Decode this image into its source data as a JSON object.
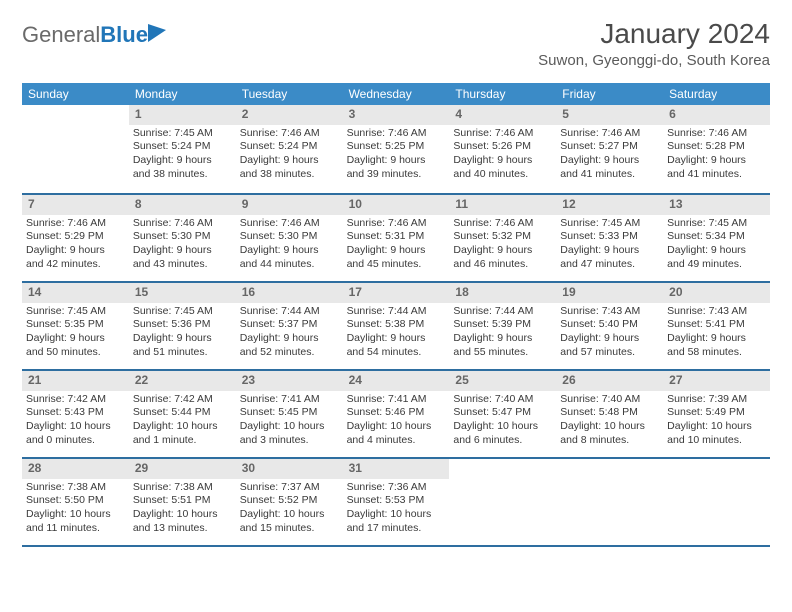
{
  "brand": {
    "part1": "General",
    "part2": "Blue"
  },
  "title": "January 2024",
  "location": "Suwon, Gyeonggi-do, South Korea",
  "colors": {
    "header_bg": "#3b8bc7",
    "header_text": "#ffffff",
    "daynum_bg": "#e8e8e8",
    "daynum_text": "#666666",
    "row_border": "#2e6ea0",
    "cell_border": "#b9d3e6",
    "brand_blue": "#2176b8",
    "brand_gray": "#6a6a6a",
    "body_text": "#3a3a3a"
  },
  "weekdays": [
    "Sunday",
    "Monday",
    "Tuesday",
    "Wednesday",
    "Thursday",
    "Friday",
    "Saturday"
  ],
  "weeks": [
    [
      {
        "blank": true
      },
      {
        "day": "1",
        "sunrise": "Sunrise: 7:45 AM",
        "sunset": "Sunset: 5:24 PM",
        "day1": "Daylight: 9 hours",
        "day2": "and 38 minutes."
      },
      {
        "day": "2",
        "sunrise": "Sunrise: 7:46 AM",
        "sunset": "Sunset: 5:24 PM",
        "day1": "Daylight: 9 hours",
        "day2": "and 38 minutes."
      },
      {
        "day": "3",
        "sunrise": "Sunrise: 7:46 AM",
        "sunset": "Sunset: 5:25 PM",
        "day1": "Daylight: 9 hours",
        "day2": "and 39 minutes."
      },
      {
        "day": "4",
        "sunrise": "Sunrise: 7:46 AM",
        "sunset": "Sunset: 5:26 PM",
        "day1": "Daylight: 9 hours",
        "day2": "and 40 minutes."
      },
      {
        "day": "5",
        "sunrise": "Sunrise: 7:46 AM",
        "sunset": "Sunset: 5:27 PM",
        "day1": "Daylight: 9 hours",
        "day2": "and 41 minutes."
      },
      {
        "day": "6",
        "sunrise": "Sunrise: 7:46 AM",
        "sunset": "Sunset: 5:28 PM",
        "day1": "Daylight: 9 hours",
        "day2": "and 41 minutes."
      }
    ],
    [
      {
        "day": "7",
        "sunrise": "Sunrise: 7:46 AM",
        "sunset": "Sunset: 5:29 PM",
        "day1": "Daylight: 9 hours",
        "day2": "and 42 minutes."
      },
      {
        "day": "8",
        "sunrise": "Sunrise: 7:46 AM",
        "sunset": "Sunset: 5:30 PM",
        "day1": "Daylight: 9 hours",
        "day2": "and 43 minutes."
      },
      {
        "day": "9",
        "sunrise": "Sunrise: 7:46 AM",
        "sunset": "Sunset: 5:30 PM",
        "day1": "Daylight: 9 hours",
        "day2": "and 44 minutes."
      },
      {
        "day": "10",
        "sunrise": "Sunrise: 7:46 AM",
        "sunset": "Sunset: 5:31 PM",
        "day1": "Daylight: 9 hours",
        "day2": "and 45 minutes."
      },
      {
        "day": "11",
        "sunrise": "Sunrise: 7:46 AM",
        "sunset": "Sunset: 5:32 PM",
        "day1": "Daylight: 9 hours",
        "day2": "and 46 minutes."
      },
      {
        "day": "12",
        "sunrise": "Sunrise: 7:45 AM",
        "sunset": "Sunset: 5:33 PM",
        "day1": "Daylight: 9 hours",
        "day2": "and 47 minutes."
      },
      {
        "day": "13",
        "sunrise": "Sunrise: 7:45 AM",
        "sunset": "Sunset: 5:34 PM",
        "day1": "Daylight: 9 hours",
        "day2": "and 49 minutes."
      }
    ],
    [
      {
        "day": "14",
        "sunrise": "Sunrise: 7:45 AM",
        "sunset": "Sunset: 5:35 PM",
        "day1": "Daylight: 9 hours",
        "day2": "and 50 minutes."
      },
      {
        "day": "15",
        "sunrise": "Sunrise: 7:45 AM",
        "sunset": "Sunset: 5:36 PM",
        "day1": "Daylight: 9 hours",
        "day2": "and 51 minutes."
      },
      {
        "day": "16",
        "sunrise": "Sunrise: 7:44 AM",
        "sunset": "Sunset: 5:37 PM",
        "day1": "Daylight: 9 hours",
        "day2": "and 52 minutes."
      },
      {
        "day": "17",
        "sunrise": "Sunrise: 7:44 AM",
        "sunset": "Sunset: 5:38 PM",
        "day1": "Daylight: 9 hours",
        "day2": "and 54 minutes."
      },
      {
        "day": "18",
        "sunrise": "Sunrise: 7:44 AM",
        "sunset": "Sunset: 5:39 PM",
        "day1": "Daylight: 9 hours",
        "day2": "and 55 minutes."
      },
      {
        "day": "19",
        "sunrise": "Sunrise: 7:43 AM",
        "sunset": "Sunset: 5:40 PM",
        "day1": "Daylight: 9 hours",
        "day2": "and 57 minutes."
      },
      {
        "day": "20",
        "sunrise": "Sunrise: 7:43 AM",
        "sunset": "Sunset: 5:41 PM",
        "day1": "Daylight: 9 hours",
        "day2": "and 58 minutes."
      }
    ],
    [
      {
        "day": "21",
        "sunrise": "Sunrise: 7:42 AM",
        "sunset": "Sunset: 5:43 PM",
        "day1": "Daylight: 10 hours",
        "day2": "and 0 minutes."
      },
      {
        "day": "22",
        "sunrise": "Sunrise: 7:42 AM",
        "sunset": "Sunset: 5:44 PM",
        "day1": "Daylight: 10 hours",
        "day2": "and 1 minute."
      },
      {
        "day": "23",
        "sunrise": "Sunrise: 7:41 AM",
        "sunset": "Sunset: 5:45 PM",
        "day1": "Daylight: 10 hours",
        "day2": "and 3 minutes."
      },
      {
        "day": "24",
        "sunrise": "Sunrise: 7:41 AM",
        "sunset": "Sunset: 5:46 PM",
        "day1": "Daylight: 10 hours",
        "day2": "and 4 minutes."
      },
      {
        "day": "25",
        "sunrise": "Sunrise: 7:40 AM",
        "sunset": "Sunset: 5:47 PM",
        "day1": "Daylight: 10 hours",
        "day2": "and 6 minutes."
      },
      {
        "day": "26",
        "sunrise": "Sunrise: 7:40 AM",
        "sunset": "Sunset: 5:48 PM",
        "day1": "Daylight: 10 hours",
        "day2": "and 8 minutes."
      },
      {
        "day": "27",
        "sunrise": "Sunrise: 7:39 AM",
        "sunset": "Sunset: 5:49 PM",
        "day1": "Daylight: 10 hours",
        "day2": "and 10 minutes."
      }
    ],
    [
      {
        "day": "28",
        "sunrise": "Sunrise: 7:38 AM",
        "sunset": "Sunset: 5:50 PM",
        "day1": "Daylight: 10 hours",
        "day2": "and 11 minutes."
      },
      {
        "day": "29",
        "sunrise": "Sunrise: 7:38 AM",
        "sunset": "Sunset: 5:51 PM",
        "day1": "Daylight: 10 hours",
        "day2": "and 13 minutes."
      },
      {
        "day": "30",
        "sunrise": "Sunrise: 7:37 AM",
        "sunset": "Sunset: 5:52 PM",
        "day1": "Daylight: 10 hours",
        "day2": "and 15 minutes."
      },
      {
        "day": "31",
        "sunrise": "Sunrise: 7:36 AM",
        "sunset": "Sunset: 5:53 PM",
        "day1": "Daylight: 10 hours",
        "day2": "and 17 minutes."
      },
      {
        "blank": true
      },
      {
        "blank": true
      },
      {
        "blank": true
      }
    ]
  ]
}
